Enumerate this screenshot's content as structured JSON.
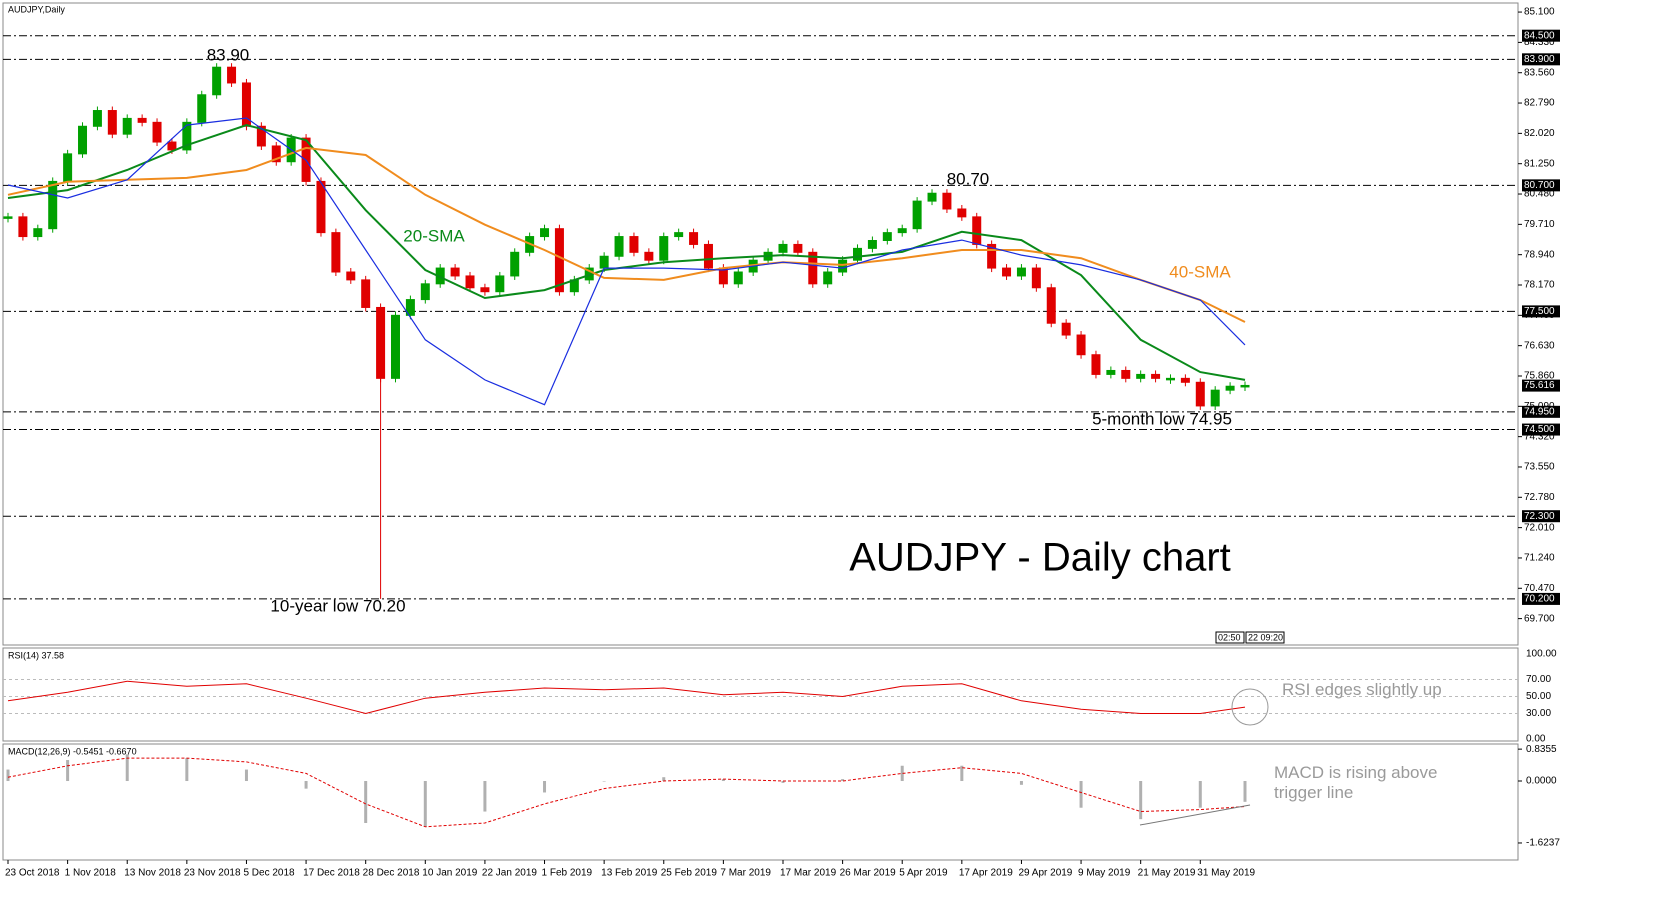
{
  "chart_data": {
    "type": "candlestick",
    "symbol_label": "AUDJPY,Daily",
    "title": "AUDJPY - Daily chart",
    "xtick_labels": [
      "23 Oct 2018",
      "1 Nov 2018",
      "13 Nov 2018",
      "23 Nov 2018",
      "5 Dec 2018",
      "17 Dec 2018",
      "28 Dec 2018",
      "10 Jan 2019",
      "22 Jan 2019",
      "1 Feb 2019",
      "13 Feb 2019",
      "25 Feb 2019",
      "7 Mar 2019",
      "17 Mar 2019",
      "26 Mar 2019",
      "5 Apr 2019",
      "17 Apr 2019",
      "29 Apr 2019",
      "9 May 2019",
      "21 May 2019",
      "31 May 2019"
    ],
    "closes": [
      79.9,
      79.4,
      79.6,
      80.8,
      81.5,
      82.2,
      82.6,
      82.0,
      82.4,
      82.3,
      81.8,
      81.6,
      82.3,
      83.0,
      83.7,
      83.3,
      82.2,
      81.7,
      81.3,
      81.9,
      80.8,
      79.5,
      78.5,
      78.3,
      77.6,
      75.8,
      77.4,
      77.8,
      78.2,
      78.6,
      78.4,
      78.1,
      78.0,
      78.4,
      79.0,
      79.4,
      79.6,
      78.0,
      78.3,
      78.6,
      78.9,
      79.4,
      79.0,
      78.8,
      79.4,
      79.5,
      79.2,
      78.6,
      78.2,
      78.5,
      78.8,
      79.0,
      79.2,
      79.0,
      78.2,
      78.5,
      78.8,
      79.1,
      79.3,
      79.5,
      79.6,
      80.3,
      80.5,
      80.1,
      79.9,
      79.2,
      78.6,
      78.4,
      78.6,
      78.1,
      77.2,
      76.9,
      76.4,
      75.9,
      76.0,
      75.8,
      75.9,
      75.8,
      75.8,
      75.7,
      75.1,
      75.5,
      75.6,
      75.62
    ],
    "up_color": "#00a000",
    "down_color": "#e00000",
    "ylim": [
      69.03,
      85.33
    ],
    "yticks": [
      {
        "value": 85.1,
        "label": "85.100"
      },
      {
        "value": 84.33,
        "label": "84.330"
      },
      {
        "value": 83.56,
        "label": "83.560"
      },
      {
        "value": 82.79,
        "label": "82.790"
      },
      {
        "value": 82.02,
        "label": "82.020"
      },
      {
        "value": 81.25,
        "label": "81.250"
      },
      {
        "value": 80.48,
        "label": "80.480"
      },
      {
        "value": 79.71,
        "label": "79.710"
      },
      {
        "value": 78.94,
        "label": "78.940"
      },
      {
        "value": 78.17,
        "label": "78.170"
      },
      {
        "value": 77.4,
        "label": "77.400"
      },
      {
        "value": 76.63,
        "label": "76.630"
      },
      {
        "value": 75.86,
        "label": "75.860"
      },
      {
        "value": 75.09,
        "label": "75.090"
      },
      {
        "value": 74.32,
        "label": "74.320"
      },
      {
        "value": 73.55,
        "label": "73.550"
      },
      {
        "value": 72.78,
        "label": "72.780"
      },
      {
        "value": 72.01,
        "label": "72.010"
      },
      {
        "value": 71.24,
        "label": "71.240"
      },
      {
        "value": 70.47,
        "label": "70.470"
      },
      {
        "value": 69.7,
        "label": "69.700"
      }
    ],
    "levels": [
      {
        "value": 84.5,
        "label": "84.500"
      },
      {
        "value": 83.9,
        "label": "83.900"
      },
      {
        "value": 80.7,
        "label": "80.700"
      },
      {
        "value": 77.5,
        "label": "77.500"
      },
      {
        "value": 74.95,
        "label": "74.950"
      },
      {
        "value": 74.5,
        "label": "74.500"
      },
      {
        "value": 72.3,
        "label": "72.300"
      },
      {
        "value": 70.2,
        "label": "70.200"
      }
    ],
    "last_price": {
      "value": 75.616,
      "label": "75.616"
    },
    "annotations": [
      "83.90",
      "80.70",
      "5-month low 74.95",
      "10-year low 70.20"
    ],
    "time_boxes": [
      "02:50",
      "22 09:20"
    ],
    "series": [
      {
        "name": "20-SMA",
        "color": "#0a8a1a",
        "values": [
          80.38,
          80.58,
          81.09,
          81.72,
          82.23,
          81.85,
          80.07,
          78.55,
          77.84,
          78.04,
          78.55,
          78.75,
          78.85,
          78.93,
          78.85,
          79.01,
          79.52,
          79.31,
          78.42,
          76.78,
          75.96,
          75.76
        ]
      },
      {
        "name": "40-SMA",
        "color": "#f08c1e",
        "values": [
          80.46,
          80.79,
          80.84,
          80.89,
          81.09,
          81.65,
          81.47,
          80.46,
          79.7,
          79.06,
          78.35,
          78.3,
          78.6,
          78.75,
          78.68,
          78.85,
          79.06,
          79.06,
          78.85,
          78.3,
          77.79,
          77.23
        ]
      },
      {
        "color": "#1a2ee0",
        "values": [
          80.71,
          80.38,
          80.84,
          82.23,
          82.41,
          81.34,
          79.06,
          76.78,
          75.76,
          75.13,
          78.6,
          78.6,
          78.55,
          78.75,
          78.6,
          79.06,
          79.31,
          78.93,
          78.68,
          78.3,
          77.79,
          76.65
        ]
      }
    ],
    "rsi": {
      "title": "RSI(14) 37.58",
      "ylim": [
        0,
        100
      ],
      "yticks": [
        {
          "value": 100,
          "label": "100.00"
        },
        {
          "value": 70,
          "label": "70.00"
        },
        {
          "value": 50,
          "label": "50.00"
        },
        {
          "value": 30,
          "label": "30.00"
        },
        {
          "value": 0,
          "label": "0.00"
        }
      ],
      "color": "#e00000",
      "values": [
        45,
        55,
        68,
        62,
        65,
        48,
        30,
        48,
        55,
        60,
        58,
        60,
        52,
        55,
        50,
        62,
        65,
        45,
        35,
        30,
        30,
        37.58
      ],
      "annotation": "RSI edges slightly up"
    },
    "macd": {
      "title": "MACD(12,26,9) -0.5451 -0.6670",
      "ylim": [
        -2.07,
        0.97
      ],
      "yticks": [
        {
          "value": 0.8355,
          "label": "0.8355"
        },
        {
          "value": 0,
          "label": "0.0000"
        },
        {
          "value": -1.6237,
          "label": "-1.6237"
        }
      ],
      "histogram": [
        0.3,
        0.55,
        0.7,
        0.6,
        0.3,
        -0.2,
        -1.1,
        -1.2,
        -0.8,
        -0.3,
        0.0,
        0.1,
        0.05,
        -0.05,
        0.05,
        0.4,
        0.4,
        -0.1,
        -0.7,
        -1.0,
        -0.7,
        -0.5451
      ],
      "signal": [
        0.1,
        0.4,
        0.6,
        0.6,
        0.5,
        0.2,
        -0.6,
        -1.2,
        -1.1,
        -0.6,
        -0.2,
        0.0,
        0.05,
        0.0,
        0.0,
        0.2,
        0.35,
        0.2,
        -0.3,
        -0.8,
        -0.75,
        -0.667
      ],
      "histogram_color": "#b0b0b0",
      "signal_color": "#e00000",
      "annotation": "MACD is rising above trigger line"
    }
  }
}
